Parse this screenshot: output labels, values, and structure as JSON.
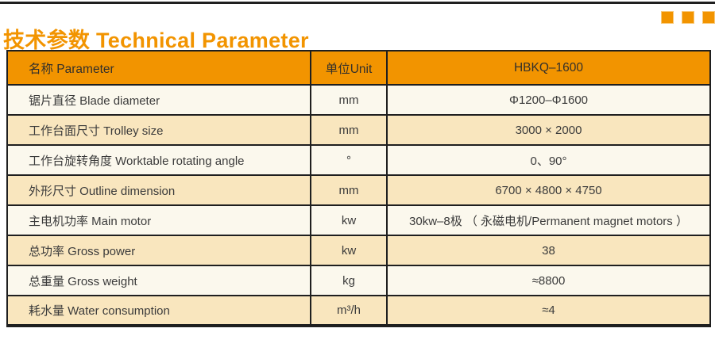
{
  "header_bar": {
    "title": "技术参数 Technical Parameter",
    "decor_squares": 3
  },
  "colors": {
    "accent_orange": "#F29400",
    "table_header_bg": "#F29400",
    "row_light": "#FBF8ED",
    "row_tan": "#F9E6BE",
    "border_ink": "#1F1F1F",
    "cell_text": "#3B3B3B"
  },
  "table": {
    "columns": [
      {
        "key": "name",
        "label": "名称 Parameter"
      },
      {
        "key": "unit",
        "label": "单位Unit"
      },
      {
        "key": "value",
        "label": "HBKQ–1600"
      }
    ],
    "rows": [
      {
        "name": "锯片直径 Blade diameter",
        "unit": "mm",
        "value": "Φ1200–Φ1600"
      },
      {
        "name": "工作台面尺寸 Trolley size",
        "unit": "mm",
        "value": "3000 × 2000"
      },
      {
        "name": "工作台旋转角度 Worktable rotating angle",
        "unit": "°",
        "value": "0、90°"
      },
      {
        "name": "外形尺寸 Outline dimension",
        "unit": "mm",
        "value": "6700 × 4800 × 4750"
      },
      {
        "name": "主电机功率 Main motor",
        "unit": "kw",
        "value": "30kw–8极 （ 永磁电机/Permanent magnet motors ）"
      },
      {
        "name": "总功率 Gross power",
        "unit": "kw",
        "value": "38"
      },
      {
        "name": "总重量 Gross weight",
        "unit": "kg",
        "value": "≈8800"
      },
      {
        "name": "耗水量 Water consumption",
        "unit": "m³/h",
        "value": "≈4"
      }
    ]
  }
}
